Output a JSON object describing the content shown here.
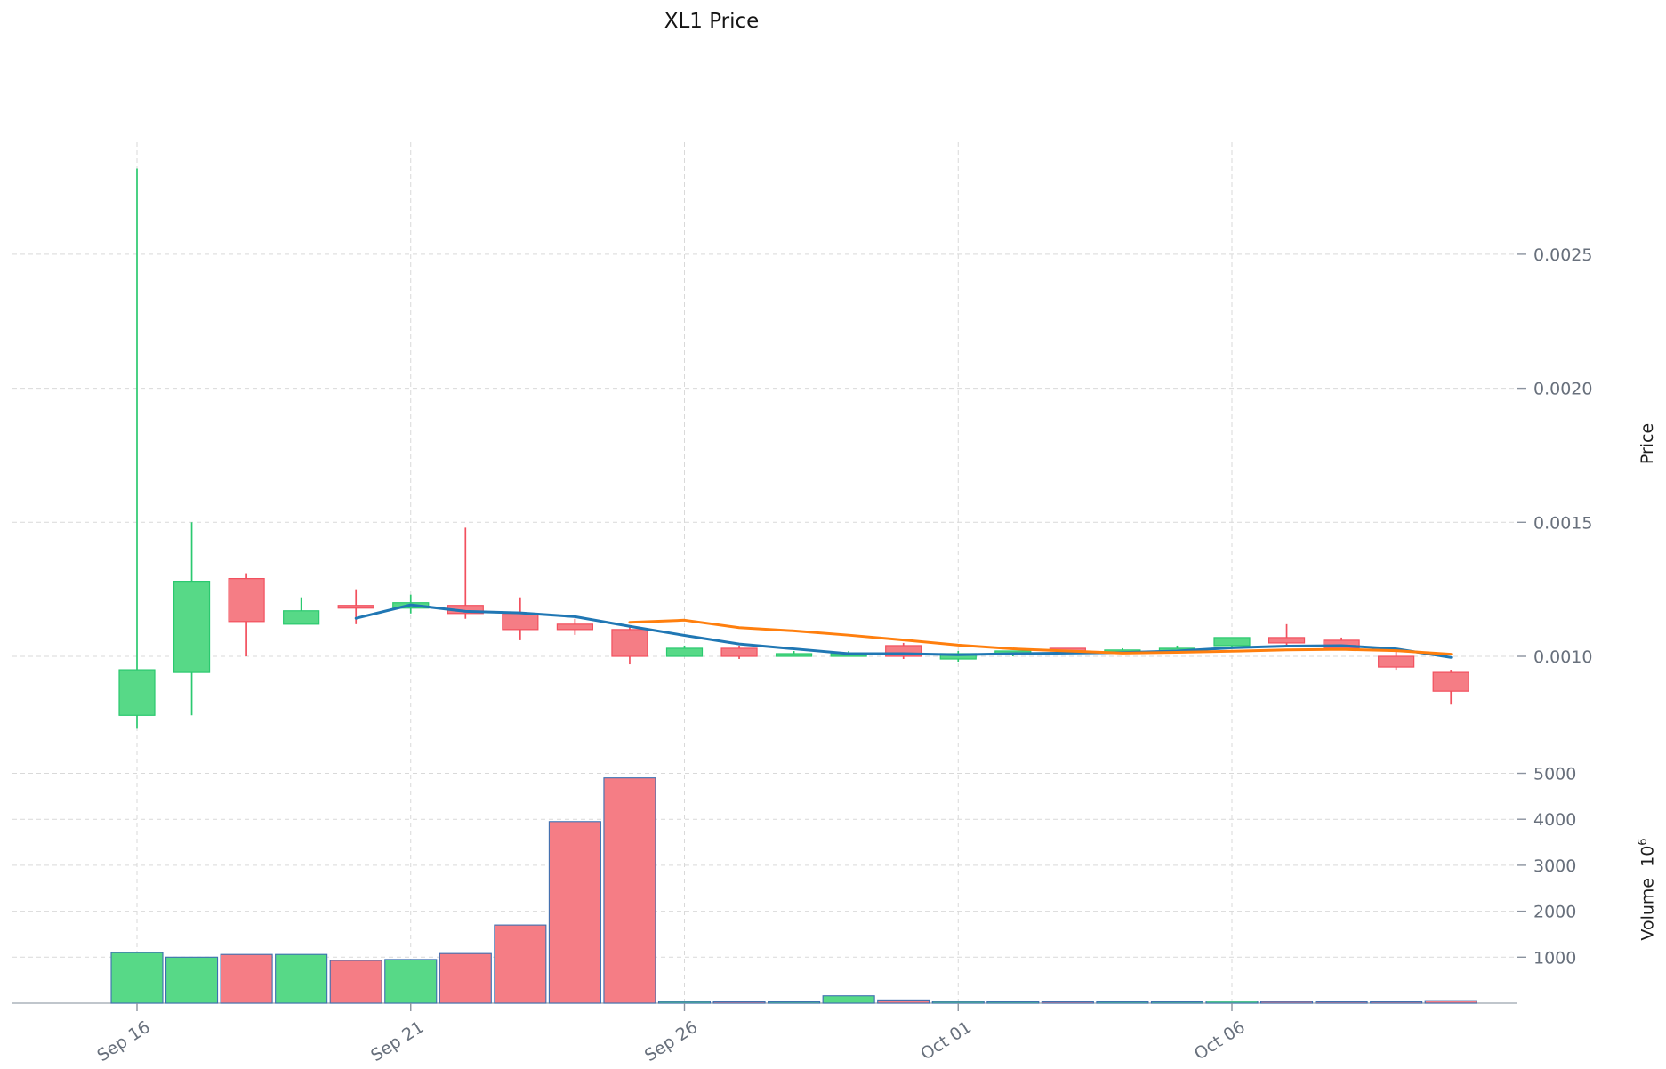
{
  "title": "XL1 Price",
  "axes": {
    "price_label": "Price",
    "volume_label": "Volume",
    "volume_unit_base": "10",
    "volume_unit_exp": "6",
    "price_ticks": [
      {
        "label": "0.0010",
        "value": 0.001
      },
      {
        "label": "0.0015",
        "value": 0.0015
      },
      {
        "label": "0.0020",
        "value": 0.002
      },
      {
        "label": "0.0025",
        "value": 0.0025
      }
    ],
    "volume_ticks": [
      {
        "label": "1000",
        "value": 1000
      },
      {
        "label": "2000",
        "value": 2000
      },
      {
        "label": "3000",
        "value": 3000
      },
      {
        "label": "4000",
        "value": 4000
      },
      {
        "label": "5000",
        "value": 5000
      }
    ],
    "x_ticks": [
      {
        "label": "Sep 16",
        "index": 0
      },
      {
        "label": "Sep 21",
        "index": 5
      },
      {
        "label": "Sep 26",
        "index": 10
      },
      {
        "label": "Oct 01",
        "index": 15
      },
      {
        "label": "Oct 06",
        "index": 20
      }
    ]
  },
  "colors": {
    "up": "#57d987",
    "up_edge": "#2bc96f",
    "down": "#f57d85",
    "down_edge": "#f2505e",
    "ma_fast": "#2077b4",
    "ma_slow": "#ff7f0e",
    "volume_edge": "#3c6fb1",
    "grid": "#d9d9d9",
    "tick_text": "#68707c",
    "axis_line": "#9aa3ad",
    "title_text": "#151515",
    "background": "#ffffff"
  },
  "chart_data": {
    "type": "candlestick",
    "title": "XL1 Price",
    "x": [
      "Sep 16",
      "Sep 17",
      "Sep 18",
      "Sep 19",
      "Sep 20",
      "Sep 21",
      "Sep 22",
      "Sep 23",
      "Sep 24",
      "Sep 25",
      "Sep 26",
      "Sep 27",
      "Sep 28",
      "Sep 29",
      "Sep 30",
      "Oct 01",
      "Oct 02",
      "Oct 03",
      "Oct 04",
      "Oct 05",
      "Oct 06",
      "Oct 07",
      "Oct 08",
      "Oct 09",
      "Oct 10"
    ],
    "open": [
      0.00078,
      0.00094,
      0.00129,
      0.00112,
      0.00119,
      0.00118,
      0.00119,
      0.00116,
      0.00112,
      0.0011,
      0.001,
      0.00103,
      0.001,
      0.001,
      0.00104,
      0.00099,
      0.00101,
      0.00103,
      0.00102,
      0.00102,
      0.00104,
      0.00107,
      0.00106,
      0.001,
      0.00094
    ],
    "high": [
      0.00282,
      0.0015,
      0.00131,
      0.00122,
      0.00125,
      0.00123,
      0.00148,
      0.00122,
      0.00114,
      0.00111,
      0.00104,
      0.00104,
      0.00102,
      0.00102,
      0.00105,
      0.00102,
      0.00102,
      0.00103,
      0.00103,
      0.00104,
      0.00107,
      0.00112,
      0.00107,
      0.00102,
      0.00095
    ],
    "low": [
      0.00073,
      0.00078,
      0.001,
      0.00112,
      0.00112,
      0.00116,
      0.00114,
      0.00106,
      0.00108,
      0.00097,
      0.001,
      0.00099,
      0.001,
      0.001,
      0.00099,
      0.00098,
      0.001,
      0.00101,
      0.00101,
      0.00102,
      0.00103,
      0.00104,
      0.00103,
      0.00095,
      0.00082
    ],
    "close": [
      0.00095,
      0.00128,
      0.00113,
      0.00117,
      0.00118,
      0.0012,
      0.00116,
      0.0011,
      0.0011,
      0.001,
      0.00103,
      0.001,
      0.00101,
      0.00101,
      0.001,
      0.00101,
      0.00102,
      0.00102,
      0.00102,
      0.00103,
      0.00107,
      0.00105,
      0.00103,
      0.00096,
      0.00087
    ],
    "volume": [
      1100,
      1000,
      1060,
      1060,
      930,
      950,
      1080,
      1700,
      3950,
      4900,
      35,
      25,
      20,
      160,
      70,
      35,
      20,
      25,
      20,
      20,
      45,
      35,
      30,
      30,
      55
    ],
    "volume_unit": "10^6",
    "overlays": [
      {
        "name": "moving-average-fast",
        "type": "line",
        "window": 5
      },
      {
        "name": "moving-average-slow",
        "type": "line",
        "window": 10
      }
    ],
    "price_ylim": [
      0.00064,
      0.00292
    ],
    "volume_ylim": [
      0,
      5470
    ],
    "grid": true,
    "legend": "none",
    "ylabel_price": "Price",
    "ylabel_volume": "Volume 10^6"
  }
}
